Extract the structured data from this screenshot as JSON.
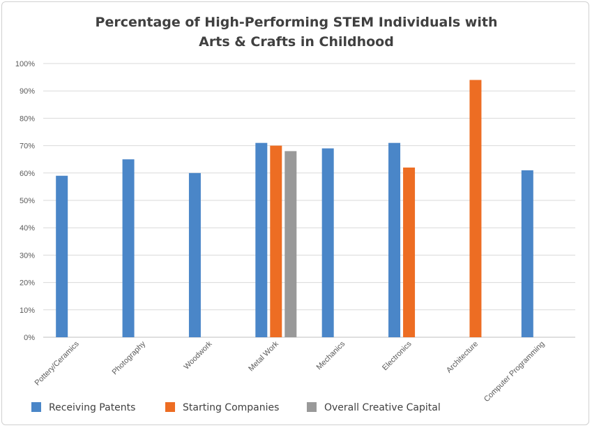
{
  "chart_data": {
    "type": "bar",
    "title": [
      "Percentage of High-Performing STEM Individuals with",
      "Arts & Crafts in Childhood"
    ],
    "categories": [
      "Pottery/Ceramics",
      "Photography",
      "Woodwork",
      "Metal Work",
      "Mechanics",
      "Electronics",
      "Architecture",
      "Computer Programming"
    ],
    "series": [
      {
        "name": "Receiving Patents",
        "color": "#4a86c8",
        "values": [
          59,
          65,
          60,
          71,
          69,
          71,
          null,
          61
        ]
      },
      {
        "name": "Starting Companies",
        "color": "#ed6d23",
        "values": [
          null,
          null,
          null,
          70,
          null,
          62,
          94,
          null
        ]
      },
      {
        "name": "Overall Creative Capital",
        "color": "#999999",
        "values": [
          null,
          null,
          null,
          68,
          null,
          null,
          null,
          null
        ]
      }
    ],
    "yticks": [
      "0%",
      "10%",
      "20%",
      "30%",
      "40%",
      "50%",
      "60%",
      "70%",
      "80%",
      "90%",
      "100%"
    ],
    "ylim": [
      0,
      100
    ],
    "grid": true,
    "legend_position": "bottom"
  }
}
